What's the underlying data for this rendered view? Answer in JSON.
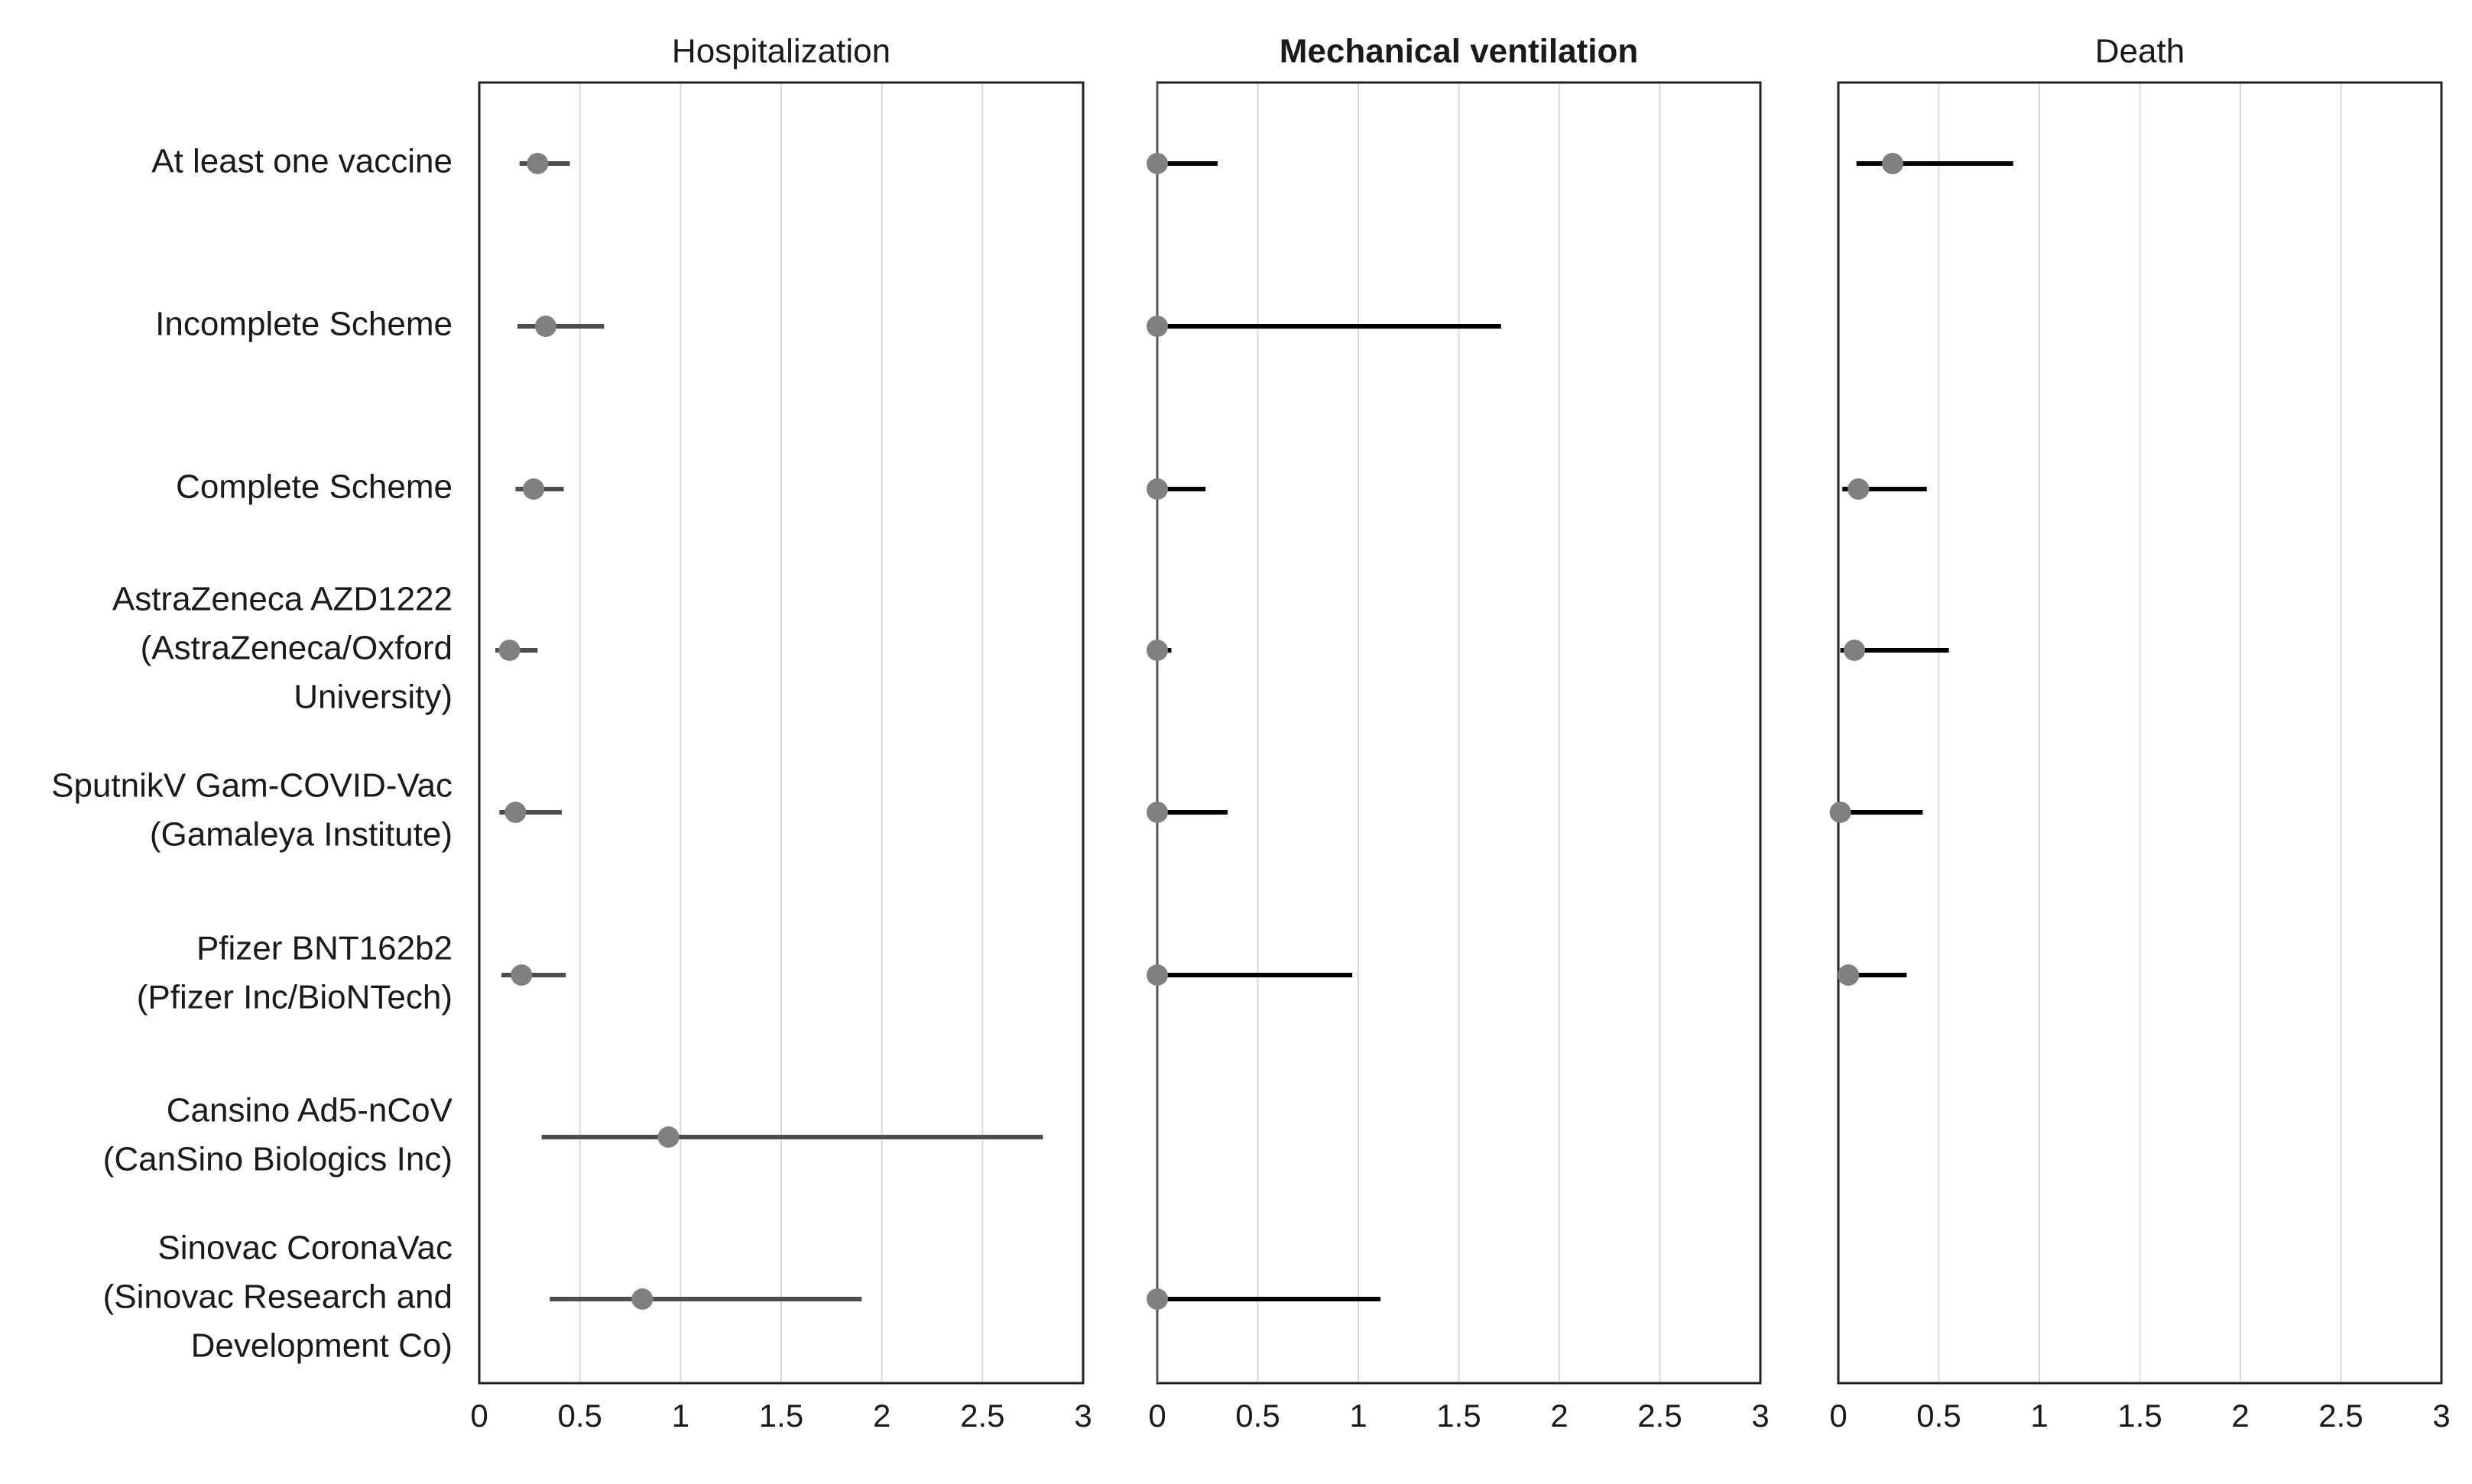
{
  "chart_data": {
    "type": "forest",
    "categories": [
      [
        "At least one vaccine"
      ],
      [
        "Incomplete Scheme"
      ],
      [
        "Complete Scheme"
      ],
      [
        "AstraZeneca AZD1222",
        "(AstraZeneca/Oxford",
        "University)"
      ],
      [
        "SputnikV Gam-COVID-Vac",
        "(Gamaleya Institute)"
      ],
      [
        "Pfizer BNT162b2",
        "(Pfizer Inc/BioNTech)"
      ],
      [
        "Cansino Ad5-nCoV",
        "(CanSino Biologics Inc)"
      ],
      [
        "Sinovac CoronaVac",
        "(Sinovac Research and",
        "Development Co)"
      ]
    ],
    "xlim": [
      0,
      3
    ],
    "xticks": [
      "0",
      "0.5",
      "1",
      "1.5",
      "2",
      "2.5",
      "3"
    ],
    "grid": true,
    "panels": [
      {
        "title": "Hospitalization",
        "bold": false,
        "estimates": [
          {
            "point": 0.29,
            "low": 0.2,
            "high": 0.45
          },
          {
            "point": 0.33,
            "low": 0.19,
            "high": 0.62
          },
          {
            "point": 0.27,
            "low": 0.18,
            "high": 0.42
          },
          {
            "point": 0.15,
            "low": 0.08,
            "high": 0.29
          },
          {
            "point": 0.18,
            "low": 0.1,
            "high": 0.41
          },
          {
            "point": 0.21,
            "low": 0.11,
            "high": 0.43
          },
          {
            "point": 0.94,
            "low": 0.31,
            "high": 2.8
          },
          {
            "point": 0.81,
            "low": 0.35,
            "high": 1.9
          }
        ]
      },
      {
        "title": "Mechanical ventilation",
        "bold": true,
        "estimates": [
          {
            "point": 0.0,
            "low": 0.0,
            "high": 0.3
          },
          {
            "point": 0.0,
            "low": 0.0,
            "high": 1.71
          },
          {
            "point": 0.0,
            "low": 0.0,
            "high": 0.24
          },
          {
            "point": 0.0,
            "low": 0.0,
            "high": 0.07
          },
          {
            "point": 0.0,
            "low": 0.0,
            "high": 0.35
          },
          {
            "point": 0.0,
            "low": 0.0,
            "high": 0.97
          },
          null,
          {
            "point": 0.0,
            "low": 0.0,
            "high": 1.11
          }
        ]
      },
      {
        "title": "Death",
        "bold": false,
        "estimates": [
          {
            "point": 0.27,
            "low": 0.09,
            "high": 0.87
          },
          null,
          {
            "point": 0.1,
            "low": 0.02,
            "high": 0.44
          },
          {
            "point": 0.08,
            "low": 0.01,
            "high": 0.55
          },
          {
            "point": 0.01,
            "low": 0.0,
            "high": 0.42
          },
          {
            "point": 0.05,
            "low": 0.01,
            "high": 0.34
          },
          null,
          null
        ]
      }
    ],
    "colors": {
      "point": "#808080",
      "ci_hospitalization": "#4d4d4d",
      "ci_other": "#000000"
    }
  }
}
